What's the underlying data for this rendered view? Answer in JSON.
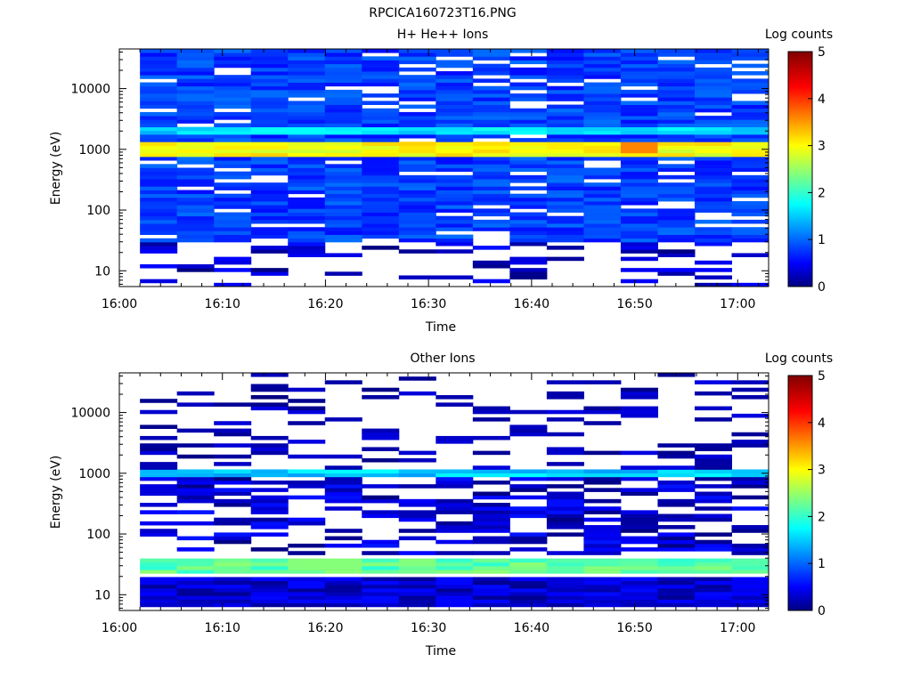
{
  "file_title": "RPCICA160723T16.PNG",
  "colors": {
    "colormap": [
      "#000080",
      "#0000ff",
      "#00ffff",
      "#ffff00",
      "#ff0000",
      "#800000"
    ],
    "background": "#ffffff"
  },
  "chart_data": [
    {
      "type": "heatmap",
      "title": "H+ He++ Ions",
      "xlabel": "Time",
      "ylabel": "Energy (eV)",
      "colorbar_label": "Log counts",
      "y_scale": "log",
      "ylim": [
        5.5,
        45000
      ],
      "xlim": [
        "16:00",
        "17:03"
      ],
      "x_ticks": [
        "16:00",
        "16:10",
        "16:20",
        "16:30",
        "16:40",
        "16:50",
        "17:00"
      ],
      "y_ticks": [
        "10",
        "100",
        "1000",
        "10000"
      ],
      "c_ticks": [
        "0",
        "1",
        "2",
        "3",
        "4",
        "5"
      ],
      "clim": [
        0,
        5
      ],
      "data_start": "16:02",
      "data_end": "17:03",
      "time_bins": 17,
      "features": [
        {
          "energy_low": 800,
          "energy_high": 1300,
          "log_counts": 3.0
        },
        {
          "energy_low": 1800,
          "energy_high": 2400,
          "log_counts": 1.6
        },
        {
          "energy_low": 30,
          "energy_high": 45000,
          "log_counts": 0.8
        }
      ],
      "peak": {
        "time": "16:52",
        "energy": 1050,
        "log_counts": 3.6
      }
    },
    {
      "type": "heatmap",
      "title": "Other Ions",
      "xlabel": "Time",
      "ylabel": "Energy (eV)",
      "colorbar_label": "Log counts",
      "y_scale": "log",
      "ylim": [
        5.5,
        45000
      ],
      "xlim": [
        "16:00",
        "17:03"
      ],
      "x_ticks": [
        "16:00",
        "16:10",
        "16:20",
        "16:30",
        "16:40",
        "16:50",
        "17:00"
      ],
      "y_ticks": [
        "10",
        "100",
        "1000",
        "10000"
      ],
      "c_ticks": [
        "0",
        "1",
        "2",
        "3",
        "4",
        "5"
      ],
      "clim": [
        0,
        5
      ],
      "data_start": "16:02",
      "data_end": "17:03",
      "time_bins": 17,
      "features": [
        {
          "energy_low": 900,
          "energy_high": 1200,
          "log_counts": 1.5
        },
        {
          "energy_low": 24,
          "energy_high": 42,
          "log_counts": 2.2
        },
        {
          "energy_low": 6,
          "energy_high": 20,
          "log_counts": 0.3
        }
      ],
      "peak": {
        "time": "16:20",
        "energy": 32,
        "log_counts": 2.4
      }
    }
  ]
}
